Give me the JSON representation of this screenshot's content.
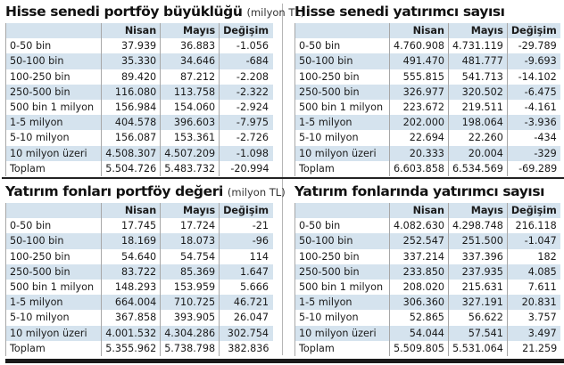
{
  "columns": {
    "nisan": "Nisan",
    "mayis": "Mayıs",
    "degisim": "Değişim"
  },
  "tables": {
    "stock_portfolio_size": {
      "title": "Hisse senedi portföy büyüklüğü",
      "unit": "(milyon TL)",
      "rows": [
        {
          "label": "0-50 bin",
          "nisan": "37.939",
          "mayis": "36.883",
          "degisim": "-1.056"
        },
        {
          "label": "50-100 bin",
          "nisan": "35.330",
          "mayis": "34.646",
          "degisim": "-684"
        },
        {
          "label": "100-250 bin",
          "nisan": "89.420",
          "mayis": "87.212",
          "degisim": "-2.208"
        },
        {
          "label": "250-500 bin",
          "nisan": "116.080",
          "mayis": "113.758",
          "degisim": "-2.322"
        },
        {
          "label": "500 bin 1 milyon",
          "nisan": "156.984",
          "mayis": "154.060",
          "degisim": "-2.924"
        },
        {
          "label": "1-5 milyon",
          "nisan": "404.578",
          "mayis": "396.603",
          "degisim": "-7.975"
        },
        {
          "label": "5-10 milyon",
          "nisan": "156.087",
          "mayis": "153.361",
          "degisim": "-2.726"
        },
        {
          "label": "10 milyon üzeri",
          "nisan": "4.508.307",
          "mayis": "4.507.209",
          "degisim": "-1.098"
        },
        {
          "label": "Toplam",
          "nisan": "5.504.726",
          "mayis": "5.483.732",
          "degisim": "-20.994"
        }
      ]
    },
    "stock_investor_count": {
      "title": "Hisse senedi yatırımcı sayısı",
      "unit": "",
      "rows": [
        {
          "label": "0-50 bin",
          "nisan": "4.760.908",
          "mayis": "4.731.119",
          "degisim": "-29.789"
        },
        {
          "label": "50-100 bin",
          "nisan": "491.470",
          "mayis": "481.777",
          "degisim": "-9.693"
        },
        {
          "label": "100-250 bin",
          "nisan": "555.815",
          "mayis": "541.713",
          "degisim": "-14.102"
        },
        {
          "label": "250-500 bin",
          "nisan": "326.977",
          "mayis": "320.502",
          "degisim": "-6.475"
        },
        {
          "label": "500 bin 1 milyon",
          "nisan": "223.672",
          "mayis": "219.511",
          "degisim": "-4.161"
        },
        {
          "label": "1-5 milyon",
          "nisan": "202.000",
          "mayis": "198.064",
          "degisim": "-3.936"
        },
        {
          "label": "5-10 milyon",
          "nisan": "22.694",
          "mayis": "22.260",
          "degisim": "-434"
        },
        {
          "label": "10 milyon üzeri",
          "nisan": "20.333",
          "mayis": "20.004",
          "degisim": "-329"
        },
        {
          "label": "Toplam",
          "nisan": "6.603.858",
          "mayis": "6.534.569",
          "degisim": "-69.289"
        }
      ]
    },
    "fund_portfolio_value": {
      "title": "Yatırım fonları portföy değeri",
      "unit": "(milyon TL)",
      "rows": [
        {
          "label": "0-50 bin",
          "nisan": "17.745",
          "mayis": "17.724",
          "degisim": "-21"
        },
        {
          "label": "50-100 bin",
          "nisan": "18.169",
          "mayis": "18.073",
          "degisim": "-96"
        },
        {
          "label": "100-250 bin",
          "nisan": "54.640",
          "mayis": "54.754",
          "degisim": "114"
        },
        {
          "label": "250-500 bin",
          "nisan": "83.722",
          "mayis": "85.369",
          "degisim": "1.647"
        },
        {
          "label": "500 bin 1 milyon",
          "nisan": "148.293",
          "mayis": "153.959",
          "degisim": "5.666"
        },
        {
          "label": "1-5 milyon",
          "nisan": "664.004",
          "mayis": "710.725",
          "degisim": "46.721"
        },
        {
          "label": "5-10 milyon",
          "nisan": "367.858",
          "mayis": "393.905",
          "degisim": "26.047"
        },
        {
          "label": "10 milyon üzeri",
          "nisan": "4.001.532",
          "mayis": "4.304.286",
          "degisim": "302.754"
        },
        {
          "label": "Toplam",
          "nisan": "5.355.962",
          "mayis": "5.738.798",
          "degisim": "382.836"
        }
      ]
    },
    "fund_investor_count": {
      "title": "Yatırım fonlarında yatırımcı sayısı",
      "unit": "",
      "rows": [
        {
          "label": "0-50 bin",
          "nisan": "4.082.630",
          "mayis": "4.298.748",
          "degisim": "216.118"
        },
        {
          "label": "50-100 bin",
          "nisan": "252.547",
          "mayis": "251.500",
          "degisim": "-1.047"
        },
        {
          "label": "100-250 bin",
          "nisan": "337.214",
          "mayis": "337.396",
          "degisim": "182"
        },
        {
          "label": "250-500 bin",
          "nisan": "233.850",
          "mayis": "237.935",
          "degisim": "4.085"
        },
        {
          "label": "500 bin 1 milyon",
          "nisan": "208.020",
          "mayis": "215.631",
          "degisim": "7.611"
        },
        {
          "label": "1-5 milyon",
          "nisan": "306.360",
          "mayis": "327.191",
          "degisim": "20.831"
        },
        {
          "label": "5-10 milyon",
          "nisan": "52.865",
          "mayis": "56.622",
          "degisim": "3.757"
        },
        {
          "label": "10 milyon üzeri",
          "nisan": "54.044",
          "mayis": "57.541",
          "degisim": "3.497"
        },
        {
          "label": "Toplam",
          "nisan": "5.509.805",
          "mayis": "5.531.064",
          "degisim": "21.259"
        }
      ]
    }
  },
  "colors": {
    "band": "#d5e3ee",
    "rule": "#1a1a1a",
    "grid": "#a7a7a7"
  }
}
